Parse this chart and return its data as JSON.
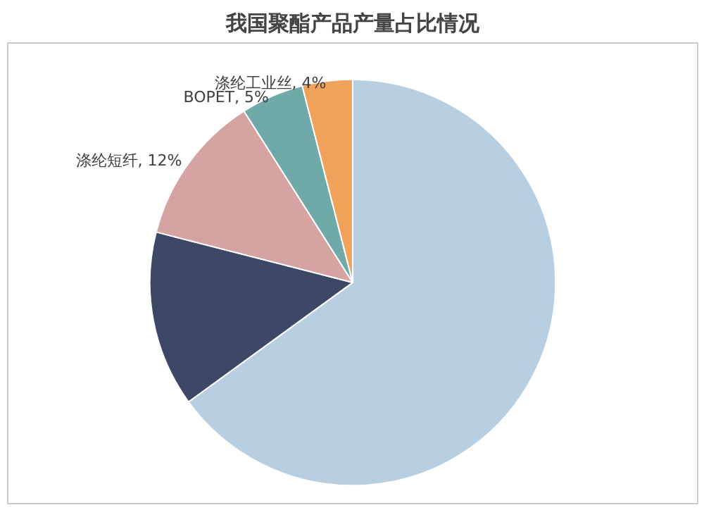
{
  "chart_data": {
    "type": "pie",
    "title": "我国聚酯产品产量占比情况",
    "categories": [
      null,
      null,
      "涤纶短纤",
      "BOPET",
      "涤纶工业丝"
    ],
    "values": [
      65,
      14,
      12,
      5,
      4
    ],
    "colors": [
      "#b7cfe1",
      "#3c4866",
      "#d6a3a3",
      "#70aaa8",
      "#f0a25a"
    ],
    "value_labels": [
      null,
      null,
      "12%",
      "5%",
      "4%"
    ],
    "legend": false
  }
}
